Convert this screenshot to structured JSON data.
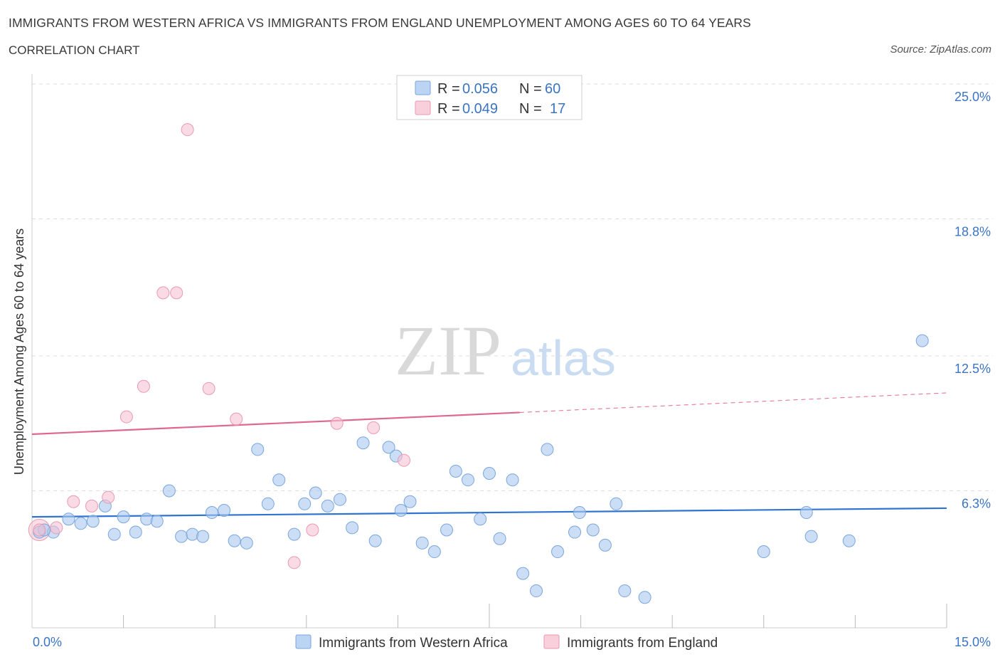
{
  "title": "IMMIGRANTS FROM WESTERN AFRICA VS IMMIGRANTS FROM ENGLAND UNEMPLOYMENT AMONG AGES 60 TO 64 YEARS",
  "subtitle": "CORRELATION CHART",
  "source": "Source: ZipAtlas.com",
  "watermark": {
    "zip": "ZIP",
    "atlas": "atlas"
  },
  "legend_top": {
    "rows": [
      {
        "r_label": "R = ",
        "r_value": "0.056",
        "n_label": "N = ",
        "n_value": "60",
        "color": "#a9c8f0"
      },
      {
        "r_label": "R = ",
        "r_value": "0.049",
        "n_label": "N = ",
        "n_value": "17",
        "color": "#f7b6ca"
      }
    ]
  },
  "colors": {
    "blue_fill": "#a9c8f0",
    "blue_stroke": "#7aa6dd",
    "blue_line": "#2f74d0",
    "pink_fill": "#f7c2d2",
    "pink_stroke": "#e99ab3",
    "pink_line": "#e0688f",
    "grid": "#dddddd",
    "axis_label": "#3b74c4"
  },
  "chart_data": {
    "type": "scatter",
    "xlim": [
      0,
      15
    ],
    "ylim": [
      0,
      25
    ],
    "ylabel": "Unemployment Among Ages 60 to 64 years",
    "x_tick_labels": [
      "0.0%",
      "15.0%"
    ],
    "y_ticks": [
      6.3,
      12.5,
      18.8,
      25.0
    ],
    "y_tick_labels": [
      "6.3%",
      "12.5%",
      "18.8%",
      "25.0%"
    ],
    "grid": "horizontal dashed",
    "series": [
      {
        "name": "Immigrants from Western Africa",
        "color": "#a9c8f0",
        "trend": {
          "x0": 0,
          "y0": 5.1,
          "x1": 15,
          "y1": 5.5
        },
        "points": [
          [
            0.12,
            4.4
          ],
          [
            0.35,
            4.4
          ],
          [
            0.6,
            5.0
          ],
          [
            0.8,
            4.8
          ],
          [
            1.0,
            4.9
          ],
          [
            1.2,
            5.6
          ],
          [
            1.35,
            4.3
          ],
          [
            1.5,
            5.1
          ],
          [
            1.7,
            4.4
          ],
          [
            1.88,
            5.0
          ],
          [
            2.05,
            4.9
          ],
          [
            2.25,
            6.3
          ],
          [
            2.45,
            4.2
          ],
          [
            2.63,
            4.3
          ],
          [
            2.8,
            4.2
          ],
          [
            2.95,
            5.3
          ],
          [
            3.15,
            5.4
          ],
          [
            3.32,
            4.0
          ],
          [
            3.52,
            3.9
          ],
          [
            3.7,
            8.2
          ],
          [
            3.87,
            5.7
          ],
          [
            4.05,
            6.8
          ],
          [
            4.3,
            4.3
          ],
          [
            4.47,
            5.7
          ],
          [
            4.65,
            6.2
          ],
          [
            4.85,
            5.6
          ],
          [
            5.05,
            5.9
          ],
          [
            5.25,
            4.6
          ],
          [
            5.43,
            8.5
          ],
          [
            5.63,
            4.0
          ],
          [
            5.85,
            8.3
          ],
          [
            5.97,
            7.9
          ],
          [
            6.05,
            5.4
          ],
          [
            6.2,
            5.8
          ],
          [
            6.4,
            3.9
          ],
          [
            6.6,
            3.5
          ],
          [
            6.8,
            4.5
          ],
          [
            6.95,
            7.2
          ],
          [
            7.15,
            6.8
          ],
          [
            7.35,
            5.0
          ],
          [
            7.5,
            7.1
          ],
          [
            7.67,
            4.1
          ],
          [
            7.88,
            6.8
          ],
          [
            8.05,
            2.5
          ],
          [
            8.27,
            1.7
          ],
          [
            8.45,
            8.2
          ],
          [
            8.62,
            3.5
          ],
          [
            8.9,
            4.4
          ],
          [
            8.98,
            5.3
          ],
          [
            9.2,
            4.5
          ],
          [
            9.4,
            3.8
          ],
          [
            9.58,
            5.7
          ],
          [
            9.72,
            1.7
          ],
          [
            10.05,
            1.4
          ],
          [
            12.0,
            3.5
          ],
          [
            12.7,
            5.3
          ],
          [
            12.78,
            4.2
          ],
          [
            13.4,
            4.0
          ],
          [
            14.6,
            13.2
          ],
          [
            0.2,
            4.5
          ]
        ]
      },
      {
        "name": "Immigrants from England",
        "color": "#f7b6ca",
        "trend": {
          "x0": 0,
          "y0": 8.9,
          "x1": 8.0,
          "y1": 9.9,
          "dashed_to_x": 15,
          "dashed_to_y": 10.8
        },
        "points": [
          [
            0.12,
            4.5
          ],
          [
            0.4,
            4.6
          ],
          [
            0.68,
            5.8
          ],
          [
            0.98,
            5.6
          ],
          [
            1.25,
            6.0
          ],
          [
            1.55,
            9.7
          ],
          [
            1.83,
            11.1
          ],
          [
            2.15,
            15.4
          ],
          [
            2.37,
            15.4
          ],
          [
            2.55,
            22.9
          ],
          [
            2.9,
            11.0
          ],
          [
            3.35,
            9.6
          ],
          [
            4.3,
            3.0
          ],
          [
            4.6,
            4.5
          ],
          [
            5.0,
            9.4
          ],
          [
            5.6,
            9.2
          ],
          [
            6.1,
            7.7
          ]
        ]
      }
    ]
  },
  "legend_bottom": {
    "items": [
      {
        "label": "Immigrants from Western Africa",
        "color": "#a9c8f0"
      },
      {
        "label": "Immigrants from England",
        "color": "#f7b6ca"
      }
    ]
  }
}
